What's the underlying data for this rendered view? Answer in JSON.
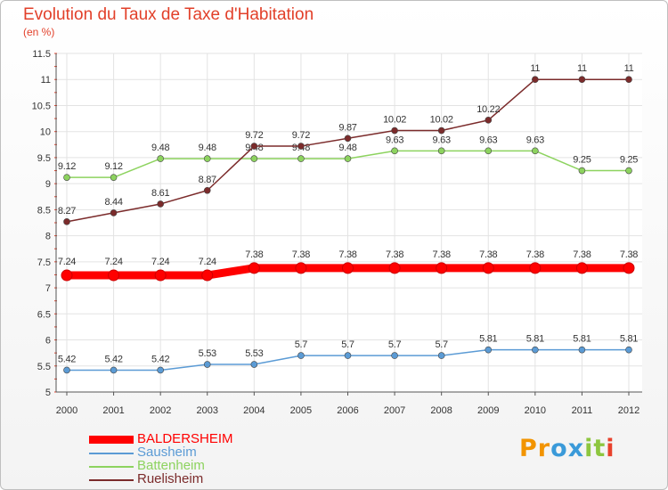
{
  "page": {
    "title": "Evolution du Taux de Taxe d'Habitation",
    "unit": "(en %)"
  },
  "logo": {
    "letters": [
      "P",
      "r",
      "o",
      "x",
      "i",
      "t",
      "i"
    ],
    "colors": [
      "#f29400",
      "#f29400",
      "#3a9ad9",
      "#3a9ad9",
      "#8dc63f",
      "#8dc63f",
      "#e8412c"
    ]
  },
  "chart_data": {
    "type": "line",
    "x": [
      "2000",
      "2001",
      "2002",
      "2003",
      "2004",
      "2005",
      "2006",
      "2007",
      "2008",
      "2009",
      "2010",
      "2011",
      "2012"
    ],
    "ylim": [
      5,
      11.5
    ],
    "yticks": [
      "5",
      "5.5",
      "6",
      "6.5",
      "7",
      "7.5",
      "8",
      "8.5",
      "9",
      "9.5",
      "10",
      "10.5",
      "11",
      "11.5"
    ],
    "grid": true,
    "legend_position": "bottom-left",
    "series": [
      {
        "name": "BALDERSHEIM",
        "color": "#ff0000",
        "values": [
          7.24,
          7.24,
          7.24,
          7.24,
          7.38,
          7.38,
          7.38,
          7.38,
          7.38,
          7.38,
          7.38,
          7.38,
          7.38
        ],
        "labels": [
          "7.24",
          "7.24",
          "7.24",
          "7.24",
          "7.38",
          "7.38",
          "7.38",
          "7.38",
          "7.38",
          "7.38",
          "7.38",
          "7.38",
          "7.38"
        ]
      },
      {
        "name": "Sausheim",
        "color": "#5b9bd5",
        "values": [
          5.42,
          5.42,
          5.42,
          5.53,
          5.53,
          5.7,
          5.7,
          5.7,
          5.7,
          5.81,
          5.81,
          5.81,
          5.81
        ],
        "labels": [
          "5.42",
          "5.42",
          "5.42",
          "5.53",
          "5.53",
          "5.7",
          "5.7",
          "5.7",
          "5.7",
          "5.81",
          "5.81",
          "5.81",
          "5.81"
        ]
      },
      {
        "name": "Battenheim",
        "color": "#8dd35f",
        "values": [
          9.12,
          9.12,
          9.48,
          9.48,
          9.48,
          9.48,
          9.48,
          9.63,
          9.63,
          9.63,
          9.63,
          9.25,
          9.25
        ],
        "labels": [
          "9.12",
          "9.12",
          "9.48",
          "9.48",
          "9.48",
          "9.48",
          "9.48",
          "9.63",
          "9.63",
          "9.63",
          "9.63",
          "9.25",
          "9.25"
        ]
      },
      {
        "name": "Ruelisheim",
        "color": "#7b2b2b",
        "values": [
          8.27,
          8.44,
          8.61,
          8.87,
          9.72,
          9.72,
          9.87,
          10.02,
          10.02,
          10.22,
          11,
          11,
          11
        ],
        "labels": [
          "8.27",
          "8.44",
          "8.61",
          "8.87",
          "9.72",
          "9.72",
          "9.87",
          "10.02",
          "10.02",
          "10.22",
          "11",
          "11",
          "11"
        ]
      }
    ]
  }
}
